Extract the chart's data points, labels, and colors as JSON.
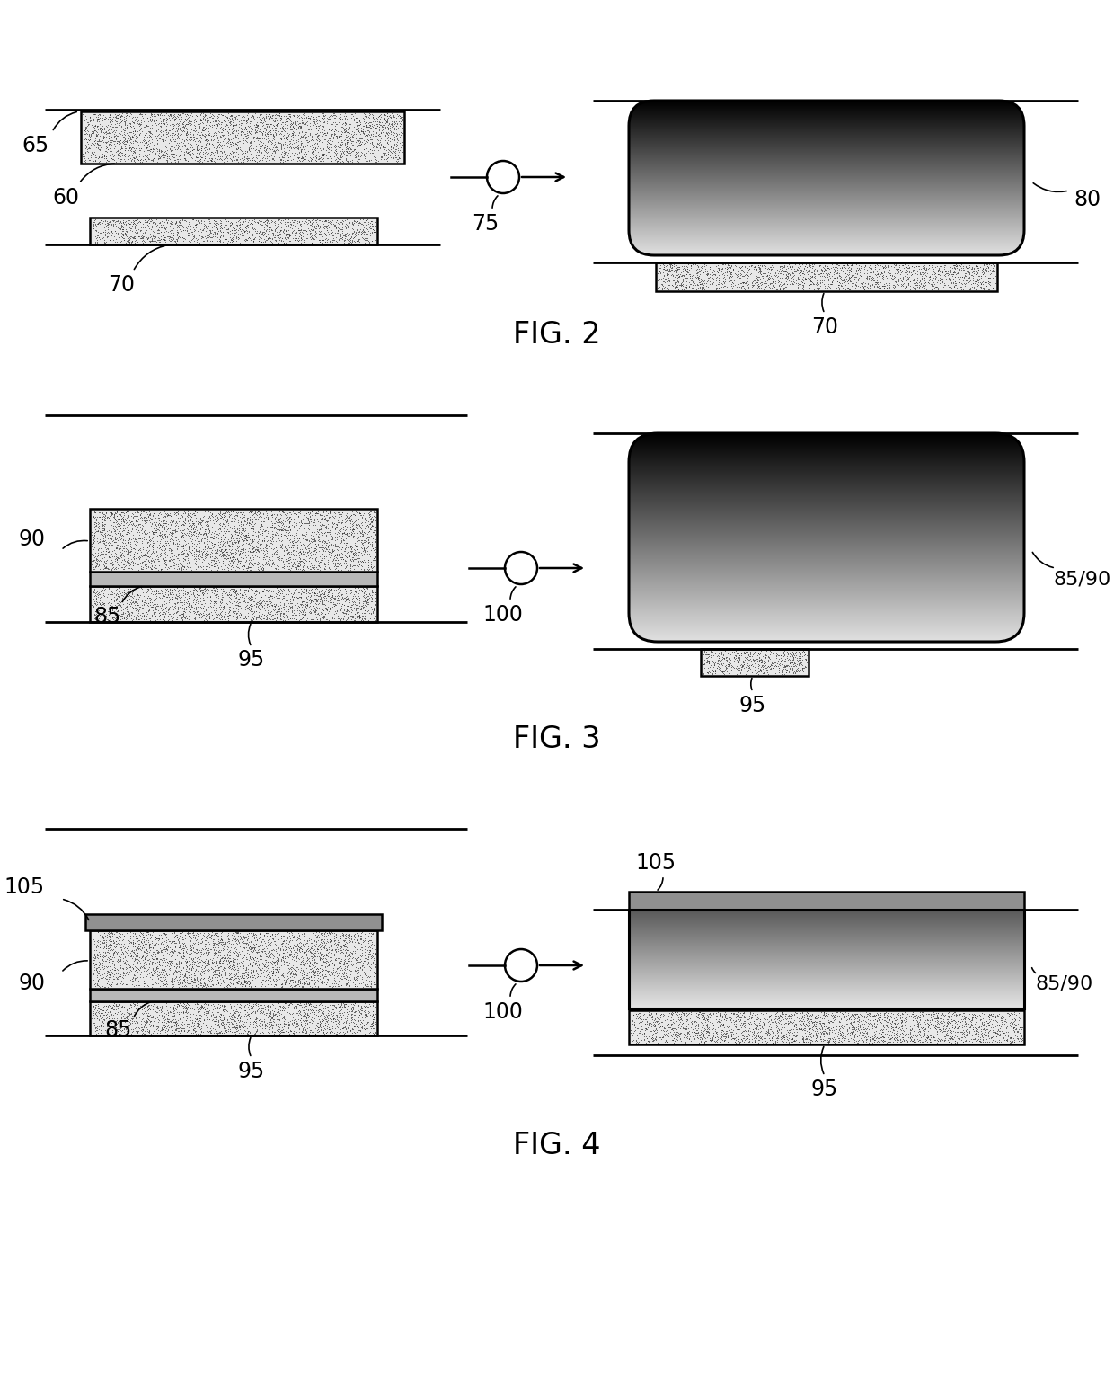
{
  "bg_color": "#ffffff",
  "lw_main": 1.8,
  "lw_thin": 1.2,
  "fig_label_fontsize": 24,
  "label_fontsize": 17,
  "stipple_color": "#d0d0d0",
  "stipple_dot_color": "#555555",
  "mid_gray": "#aaaaaa",
  "dark_gray": "#444444",
  "fig2_label": "FIG. 2",
  "fig3_label": "FIG. 3",
  "fig4_label": "FIG. 4"
}
